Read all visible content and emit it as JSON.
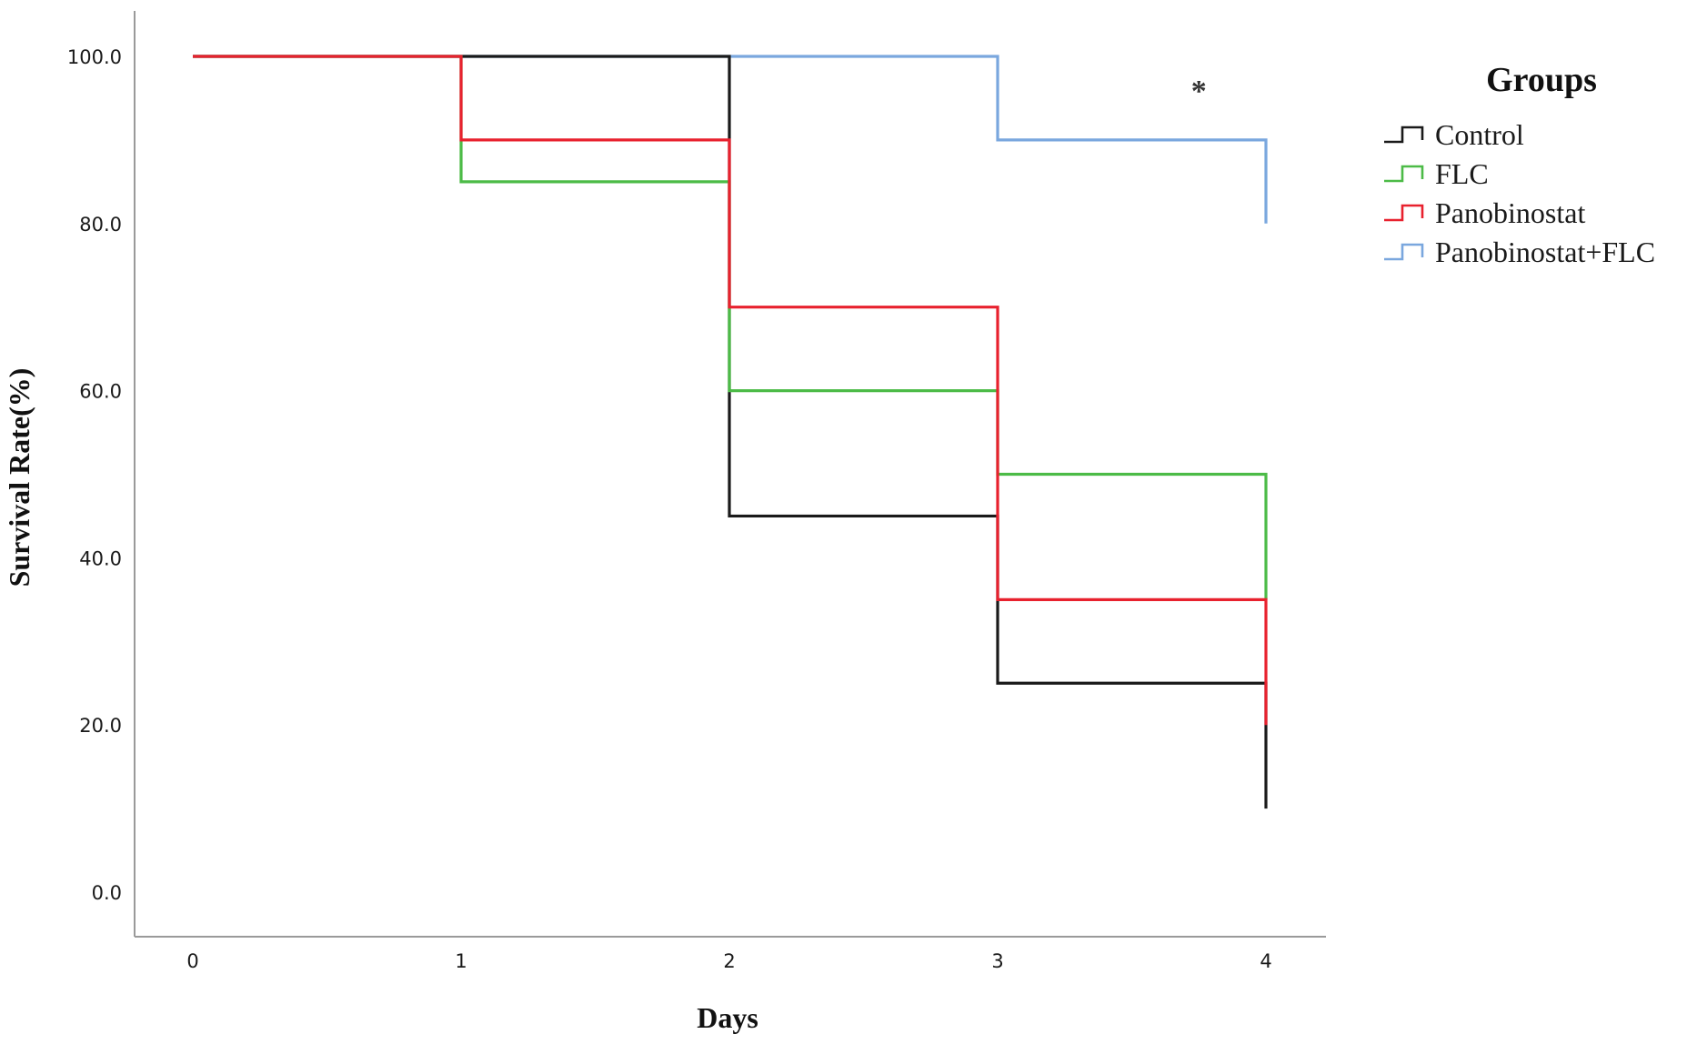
{
  "chart_data": {
    "type": "line",
    "style": "step",
    "title": "",
    "xlabel": "Days",
    "ylabel": "Survival Rate(%)",
    "x_ticks": [
      "0",
      "1",
      "2",
      "3",
      "4"
    ],
    "y_ticks": [
      "0.0",
      "20.0",
      "40.0",
      "60.0",
      "80.0",
      "100.0"
    ],
    "xlim": [
      0,
      4
    ],
    "ylim": [
      0,
      100
    ],
    "grid": false,
    "legend_title": "Groups",
    "legend_position": "top-right",
    "annotation": {
      "text": "*",
      "x": 3.75,
      "y": 96
    },
    "series": [
      {
        "name": "Control",
        "color": "#1a1a1a",
        "x": [
          0,
          1,
          2,
          3,
          4
        ],
        "values": [
          100,
          100,
          45,
          25,
          10
        ]
      },
      {
        "name": "FLC",
        "color": "#4cbb47",
        "x": [
          0,
          1,
          2,
          3,
          4
        ],
        "values": [
          100,
          85,
          60,
          50,
          35
        ]
      },
      {
        "name": "Panobinostat",
        "color": "#e8212e",
        "x": [
          0,
          1,
          2,
          3,
          4
        ],
        "values": [
          100,
          90,
          70,
          35,
          20
        ]
      },
      {
        "name": "Panobinostat+FLC",
        "color": "#7aa7de",
        "x": [
          0,
          1,
          2,
          3,
          4
        ],
        "values": [
          100,
          100,
          100,
          90,
          80
        ]
      }
    ]
  }
}
